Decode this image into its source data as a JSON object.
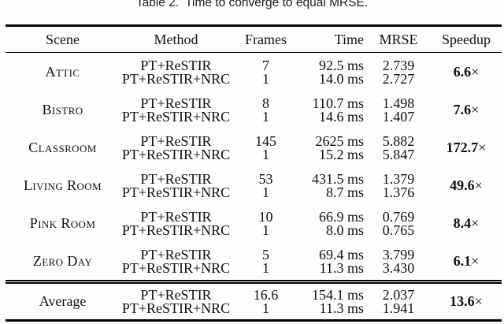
{
  "caption": {
    "label": "Table 2.",
    "text": "Time to converge to equal MRSE."
  },
  "table": {
    "columns": [
      "Scene",
      "Method",
      "Frames",
      "Time",
      "MRSE",
      "Speedup"
    ],
    "times_symbol": "×",
    "groups": [
      {
        "scene": "Attic",
        "average": false,
        "speedup": "6.6",
        "rows": [
          {
            "method": "PT+ReSTIR",
            "frames": "7",
            "time": "92.5 ms",
            "mrse": "2.739"
          },
          {
            "method": "PT+ReSTIR+NRC",
            "frames": "1",
            "time": "14.0 ms",
            "mrse": "2.727"
          }
        ]
      },
      {
        "scene": "Bistro",
        "average": false,
        "speedup": "7.6",
        "rows": [
          {
            "method": "PT+ReSTIR",
            "frames": "8",
            "time": "110.7 ms",
            "mrse": "1.498"
          },
          {
            "method": "PT+ReSTIR+NRC",
            "frames": "1",
            "time": "14.6 ms",
            "mrse": "1.407"
          }
        ]
      },
      {
        "scene": "Classroom",
        "average": false,
        "speedup": "172.7",
        "rows": [
          {
            "method": "PT+ReSTIR",
            "frames": "145",
            "time": "2625 ms",
            "mrse": "5.882"
          },
          {
            "method": "PT+ReSTIR+NRC",
            "frames": "1",
            "time": "15.2 ms",
            "mrse": "5.847"
          }
        ]
      },
      {
        "scene": "Living Room",
        "average": false,
        "speedup": "49.6",
        "rows": [
          {
            "method": "PT+ReSTIR",
            "frames": "53",
            "time": "431.5 ms",
            "mrse": "1.379"
          },
          {
            "method": "PT+ReSTIR+NRC",
            "frames": "1",
            "time": "8.7 ms",
            "mrse": "1.376"
          }
        ]
      },
      {
        "scene": "Pink Room",
        "average": false,
        "speedup": "8.4",
        "rows": [
          {
            "method": "PT+ReSTIR",
            "frames": "10",
            "time": "66.9 ms",
            "mrse": "0.769"
          },
          {
            "method": "PT+ReSTIR+NRC",
            "frames": "1",
            "time": "8.0 ms",
            "mrse": "0.765"
          }
        ]
      },
      {
        "scene": "Zero Day",
        "average": false,
        "speedup": "6.1",
        "rows": [
          {
            "method": "PT+ReSTIR",
            "frames": "5",
            "time": "69.4 ms",
            "mrse": "3.799"
          },
          {
            "method": "PT+ReSTIR+NRC",
            "frames": "1",
            "time": "11.3 ms",
            "mrse": "3.430"
          }
        ]
      },
      {
        "scene": "Average",
        "average": true,
        "speedup": "13.6",
        "rows": [
          {
            "method": "PT+ReSTIR",
            "frames": "16.6",
            "time": "154.1 ms",
            "mrse": "2.037"
          },
          {
            "method": "PT+ReSTIR+NRC",
            "frames": "1",
            "time": "11.3 ms",
            "mrse": "1.941"
          }
        ]
      }
    ]
  }
}
